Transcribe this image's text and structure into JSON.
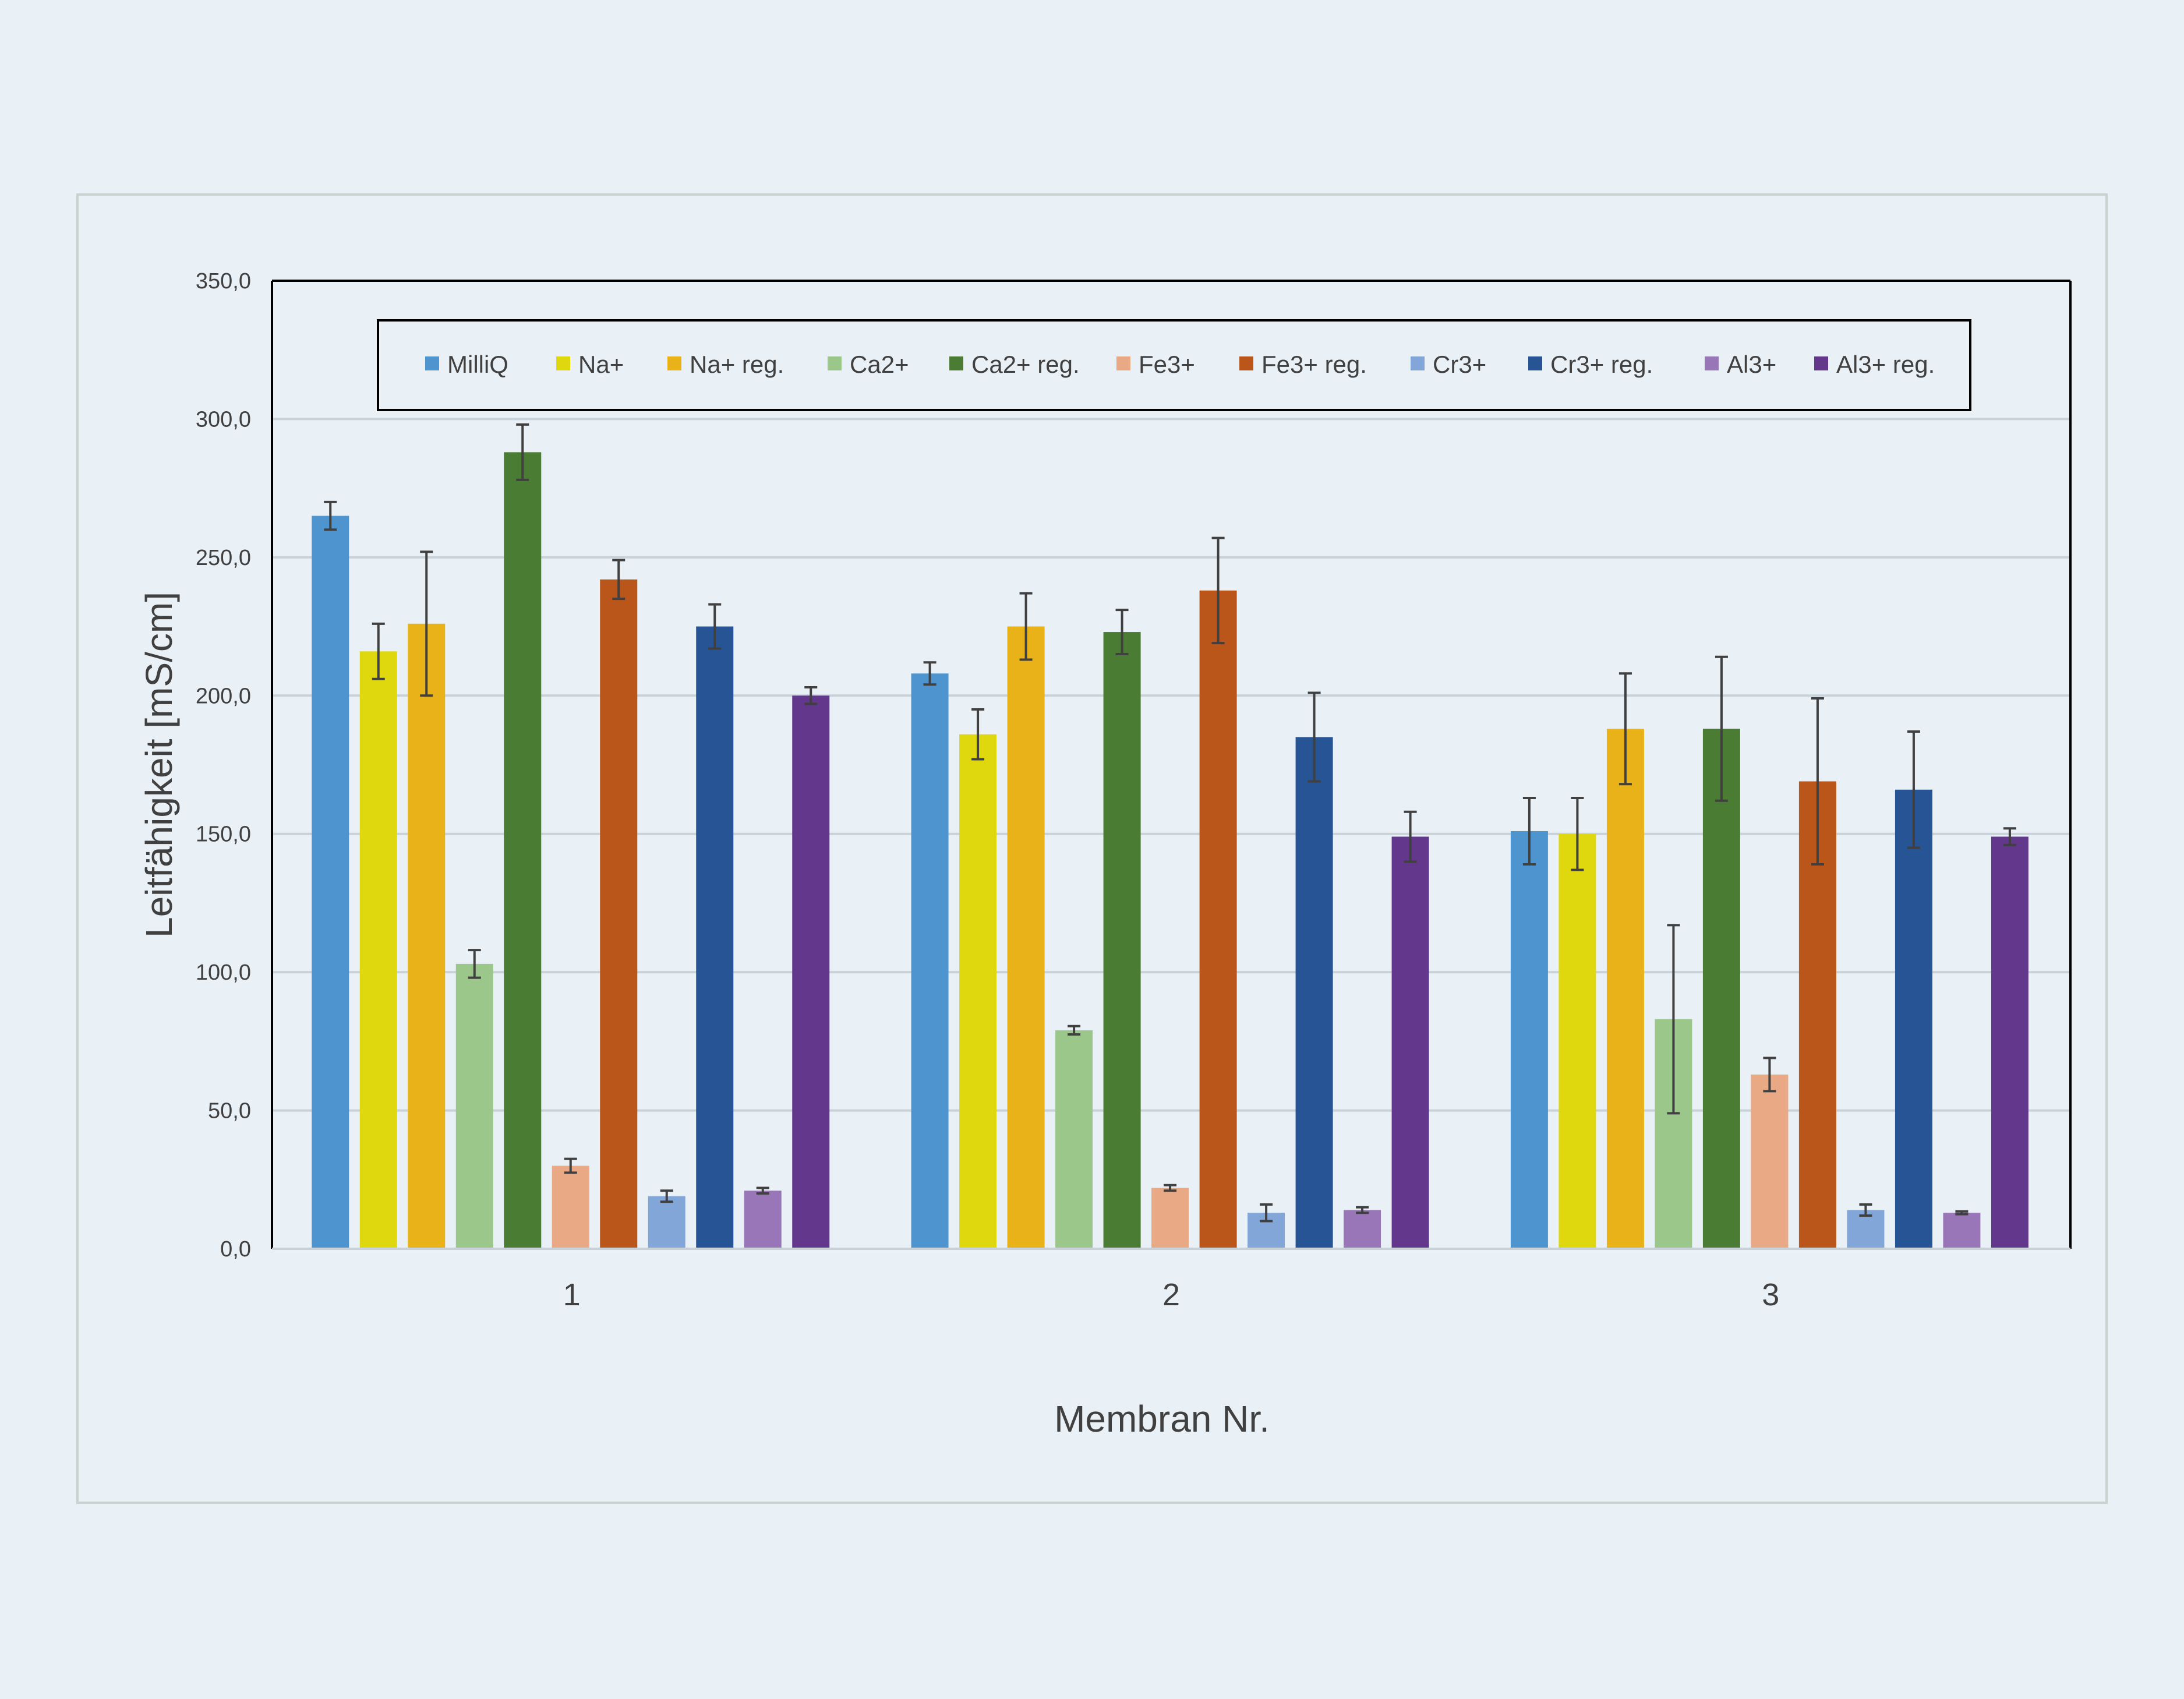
{
  "chart_data": {
    "type": "bar",
    "title": "",
    "xlabel": "Membran Nr.",
    "ylabel": "Leitfähigkeit [mS/cm]",
    "ylim": [
      0,
      350
    ],
    "y_ticks": [
      "0,0",
      "50,0",
      "100,0",
      "150,0",
      "200,0",
      "250,0",
      "300,0",
      "350,0"
    ],
    "categories": [
      "1",
      "2",
      "3"
    ],
    "grid": true,
    "legend_position": "top",
    "error_bars": true,
    "series": [
      {
        "name": "MilliQ",
        "color": "#4e95d0",
        "values": [
          265,
          208,
          151
        ],
        "errors": [
          5,
          4,
          12
        ]
      },
      {
        "name": "Na+",
        "color": "#dfd80e",
        "values": [
          216,
          186,
          150
        ],
        "errors": [
          10,
          9,
          13
        ]
      },
      {
        "name": "Na+ reg.",
        "color": "#e8b218",
        "values": [
          226,
          225,
          188
        ],
        "errors": [
          26,
          12,
          20
        ]
      },
      {
        "name": "Ca2+",
        "color": "#9bc78b",
        "values": [
          103,
          79,
          83
        ],
        "errors": [
          5,
          1.5,
          34
        ]
      },
      {
        "name": "Ca2+ reg.",
        "color": "#4a7d33",
        "values": [
          288,
          223,
          188
        ],
        "errors": [
          10,
          8,
          26
        ]
      },
      {
        "name": "Fe3+",
        "color": "#e8a984",
        "values": [
          30,
          22,
          63
        ],
        "errors": [
          2.5,
          1,
          6
        ]
      },
      {
        "name": "Fe3+ reg.",
        "color": "#ba561a",
        "values": [
          242,
          238,
          169
        ],
        "errors": [
          7,
          19,
          30
        ]
      },
      {
        "name": "Cr3+",
        "color": "#82a6d8",
        "values": [
          19,
          13,
          14
        ],
        "errors": [
          2,
          3,
          2
        ]
      },
      {
        "name": "Cr3+ reg.",
        "color": "#265494",
        "values": [
          225,
          185,
          166
        ],
        "errors": [
          8,
          16,
          21
        ]
      },
      {
        "name": "Al3+",
        "color": "#9876b7",
        "values": [
          21,
          14,
          13
        ],
        "errors": [
          1,
          1,
          0.5
        ]
      },
      {
        "name": "Al3+ reg.",
        "color": "#62378c",
        "values": [
          200,
          149,
          149
        ],
        "errors": [
          3,
          9,
          3
        ]
      }
    ]
  }
}
